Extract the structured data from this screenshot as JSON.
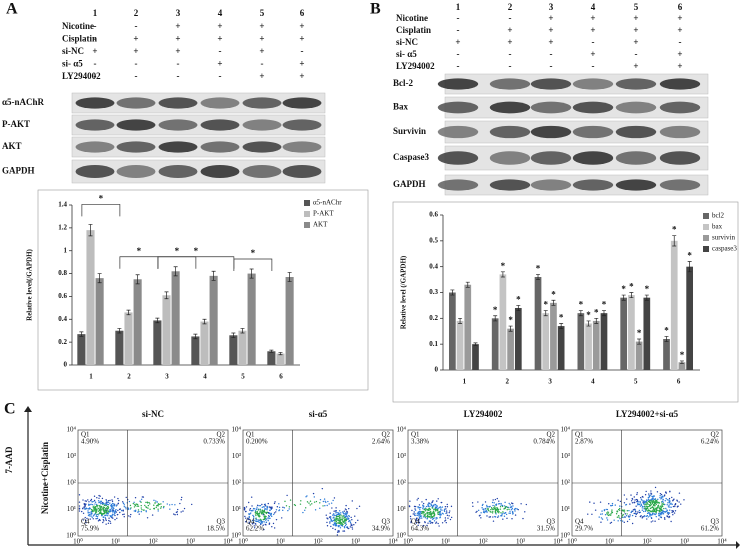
{
  "panel_a": {
    "label": "A",
    "columns": [
      "1",
      "2",
      "3",
      "4",
      "5",
      "6"
    ],
    "treatments": [
      {
        "name": "Nicotine",
        "signs": [
          "-",
          "-",
          "+",
          "+",
          "+",
          "+"
        ]
      },
      {
        "name": "Cisplatin",
        "signs": [
          "-",
          "+",
          "+",
          "+",
          "+",
          "+"
        ]
      },
      {
        "name": "si-NC",
        "signs": [
          "+",
          "+",
          "+",
          "-",
          "+",
          "-"
        ]
      },
      {
        "name": "si- α5",
        "signs": [
          "-",
          "-",
          "-",
          "+",
          "-",
          "+"
        ]
      },
      {
        "name": "LY294002",
        "signs": [
          "-",
          "-",
          "-",
          "-",
          "+",
          "+"
        ]
      }
    ],
    "blots": [
      "α5-nAChR",
      "P-AKT",
      "AKT",
      "GAPDH"
    ]
  },
  "panel_b": {
    "label": "B",
    "columns": [
      "1",
      "2",
      "3",
      "4",
      "5",
      "6"
    ],
    "treatments": [
      {
        "name": "Nicotine",
        "signs": [
          "-",
          "-",
          "+",
          "+",
          "+",
          "+"
        ]
      },
      {
        "name": "Cisplatin",
        "signs": [
          "-",
          "+",
          "+",
          "+",
          "+",
          "+"
        ]
      },
      {
        "name": "si-NC",
        "signs": [
          "+",
          "+",
          "+",
          "-",
          "+",
          "-"
        ]
      },
      {
        "name": "si- α5",
        "signs": [
          "-",
          "-",
          "-",
          "+",
          "-",
          "+"
        ]
      },
      {
        "name": "LY294002",
        "signs": [
          "-",
          "-",
          "-",
          "-",
          "+",
          "+"
        ]
      }
    ],
    "blots": [
      "Bcl-2",
      "Bax",
      "Survivin",
      "Caspase3",
      "GAPDH"
    ]
  },
  "chart_data": [
    {
      "type": "bar",
      "y_label": "Relative level(/GAPDH)",
      "categories": [
        "1",
        "2",
        "3",
        "4",
        "5",
        "6"
      ],
      "ylim": [
        0,
        1.4
      ],
      "yticks": [
        0,
        0.2,
        0.4,
        0.6,
        0.8,
        1,
        1.2,
        1.4
      ],
      "series": [
        {
          "name": "α5-nAChr",
          "color": "#555555",
          "values": [
            0.27,
            0.3,
            0.39,
            0.25,
            0.26,
            0.12
          ],
          "errors": [
            0.02,
            0.02,
            0.02,
            0.02,
            0.02,
            0.01
          ]
        },
        {
          "name": "P-AKT",
          "color": "#bdbdbd",
          "values": [
            1.18,
            0.46,
            0.61,
            0.38,
            0.3,
            0.1
          ],
          "errors": [
            0.05,
            0.02,
            0.03,
            0.02,
            0.02,
            0.01
          ]
        },
        {
          "name": "AKT",
          "color": "#8a8a8a",
          "values": [
            0.76,
            0.75,
            0.82,
            0.78,
            0.8,
            0.77
          ],
          "errors": [
            0.04,
            0.04,
            0.04,
            0.04,
            0.04,
            0.04
          ]
        }
      ],
      "brackets": [
        {
          "from": "1",
          "to": "2",
          "label": "*"
        },
        {
          "from": "2",
          "to": "3",
          "label": "*"
        },
        {
          "from": "3",
          "to": "5",
          "label": "*"
        },
        {
          "from": "3",
          "to": "4",
          "label": "*"
        },
        {
          "from": "5",
          "to": "6",
          "label": "*"
        }
      ]
    },
    {
      "type": "bar",
      "y_label": "Relative level (/GAPDH)",
      "categories": [
        "1",
        "2",
        "3",
        "4",
        "5",
        "6"
      ],
      "ylim": [
        0,
        0.6
      ],
      "yticks": [
        0,
        0.1,
        0.2,
        0.3,
        0.4,
        0.5,
        0.6
      ],
      "series": [
        {
          "name": "bcl2",
          "color": "#666666",
          "values": [
            0.3,
            0.2,
            0.36,
            0.22,
            0.28,
            0.12
          ],
          "errors": [
            0.01,
            0.01,
            0.01,
            0.01,
            0.01,
            0.01
          ],
          "annotations": [
            null,
            "*",
            "*",
            "*",
            "*",
            "*"
          ]
        },
        {
          "name": "bax",
          "color": "#c4c4c4",
          "values": [
            0.19,
            0.37,
            0.22,
            0.18,
            0.29,
            0.5
          ],
          "errors": [
            0.01,
            0.01,
            0.01,
            0.01,
            0.01,
            0.02
          ],
          "annotations": [
            null,
            "*",
            "*",
            "*",
            "*",
            "*"
          ]
        },
        {
          "name": "survivin",
          "color": "#9a9a9a",
          "values": [
            0.33,
            0.16,
            0.26,
            0.19,
            0.11,
            0.03
          ],
          "errors": [
            0.01,
            0.01,
            0.01,
            0.01,
            0.01,
            0.005
          ],
          "annotations": [
            null,
            "*",
            "*",
            "*",
            "*",
            "*"
          ]
        },
        {
          "name": "caspase3",
          "color": "#444444",
          "values": [
            0.1,
            0.24,
            0.17,
            0.22,
            0.28,
            0.4
          ],
          "errors": [
            0.005,
            0.01,
            0.01,
            0.01,
            0.01,
            0.02
          ],
          "annotations": [
            null,
            "*",
            "*",
            "*",
            "*",
            "*"
          ]
        }
      ]
    }
  ],
  "panel_c": {
    "label": "C",
    "y_label": "7-AAD",
    "row_label": "Nicotine+Cisplatin",
    "ticks": [
      "10⁰",
      "10¹",
      "10²",
      "10³",
      "10⁴"
    ],
    "plots": [
      {
        "title": "si-NC",
        "quadrants": [
          {
            "name": "Q1",
            "value": "4.90%"
          },
          {
            "name": "Q2",
            "value": "0.733%"
          },
          {
            "name": "Q3",
            "value": "18.5%"
          },
          {
            "name": "Q4",
            "value": "75.9%"
          }
        ]
      },
      {
        "title": "si-α5",
        "quadrants": [
          {
            "name": "Q1",
            "value": "0.200%"
          },
          {
            "name": "Q2",
            "value": "2.64%"
          },
          {
            "name": "Q3",
            "value": "34.9%"
          },
          {
            "name": "Q4",
            "value": "62.2%"
          }
        ]
      },
      {
        "title": "LY294002",
        "quadrants": [
          {
            "name": "Q1",
            "value": "3.38%"
          },
          {
            "name": "Q2",
            "value": "0.784%"
          },
          {
            "name": "Q3",
            "value": "31.5%"
          },
          {
            "name": "Q4",
            "value": "64.3%"
          }
        ]
      },
      {
        "title": "LY294002+si-α5",
        "quadrants": [
          {
            "name": "Q1",
            "value": "2.87%"
          },
          {
            "name": "Q2",
            "value": "6.24%"
          },
          {
            "name": "Q3",
            "value": "61.2%"
          },
          {
            "name": "Q4",
            "value": "29.7%"
          }
        ]
      }
    ]
  }
}
